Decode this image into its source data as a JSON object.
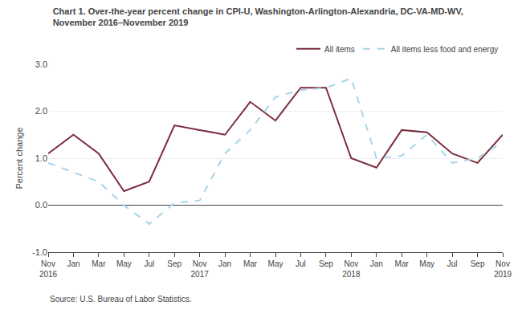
{
  "chart_data": {
    "type": "line",
    "title": "Chart 1. Over-the-year percent change in CPI-U, Washington-Arlington-Alexandria, DC-VA-MD-WV,",
    "subtitle": "November 2016–November 2019",
    "y_label": "Percent change",
    "annotations": [
      "Source: U.S. Bureau of Labor Statistics."
    ],
    "categories": [
      "Nov\n2016",
      "Jan",
      "Mar",
      "May",
      "Jul",
      "Sep",
      "Nov\n2017",
      "Jan",
      "Mar",
      "May",
      "Jul",
      "Sep",
      "Nov\n2018",
      "Jan",
      "Mar",
      "May",
      "Jul",
      "Sep",
      "Nov\n2019"
    ],
    "series": [
      {
        "name": "All items",
        "color": "#7B2D3E",
        "line_style": "solid",
        "values": [
          1.1,
          1.5,
          1.1,
          0.3,
          0.5,
          1.7,
          1.6,
          1.5,
          2.2,
          1.8,
          2.5,
          2.5,
          1.0,
          0.8,
          1.6,
          1.55,
          1.1,
          0.9,
          1.5
        ]
      },
      {
        "name": "All items less food and energy",
        "color": "#A8D4E8",
        "line_style": "dashed",
        "values": [
          0.9,
          0.7,
          0.5,
          0.0,
          -0.4,
          0.05,
          0.1,
          1.1,
          1.6,
          2.3,
          2.45,
          2.5,
          2.7,
          1.0,
          1.05,
          1.5,
          0.9,
          1.0,
          1.35
        ]
      }
    ],
    "ylim": [
      -1.0,
      3.0
    ],
    "yticks": [
      {
        "value": -1.0,
        "label": "-1.0"
      },
      {
        "value": 0.0,
        "label": "0.0"
      },
      {
        "value": 1.0,
        "label": "1.0"
      },
      {
        "value": 2.0,
        "label": "2.0"
      },
      {
        "value": 3.0,
        "label": "3.0"
      }
    ],
    "grid": true,
    "legend": "upper right"
  }
}
